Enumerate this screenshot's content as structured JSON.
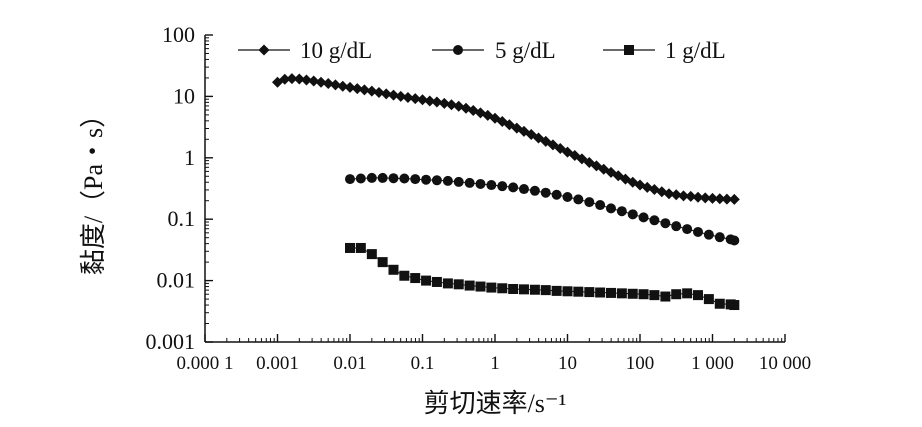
{
  "chart_data": {
    "type": "scatter",
    "title": "",
    "xlabel": "剪切速率/s⁻¹",
    "ylabel": "黏度/（Pa・s）",
    "xscale": "log",
    "yscale": "log",
    "xlim": [
      0.0001,
      10000
    ],
    "ylim": [
      0.001,
      100
    ],
    "xtick_labels": [
      "0.000 1",
      "0.001",
      "0.01",
      "0.1",
      "1",
      "10",
      "100",
      "1 000",
      "10 000"
    ],
    "ytick_labels": [
      "0.001",
      "0.01",
      "0.1",
      "1",
      "10",
      "100"
    ],
    "legend_position": "top",
    "grid": false,
    "series": [
      {
        "name": "10 g/dL",
        "marker": "diamond",
        "points": [
          [
            0.001,
            17.0
          ],
          [
            0.00126,
            19.0
          ],
          [
            0.00158,
            19.5
          ],
          [
            0.002,
            19.2
          ],
          [
            0.00251,
            18.5
          ],
          [
            0.00316,
            17.8
          ],
          [
            0.00398,
            17.0
          ],
          [
            0.00501,
            16.2
          ],
          [
            0.0063,
            15.4
          ],
          [
            0.00794,
            14.6
          ],
          [
            0.01,
            14.0
          ],
          [
            0.0126,
            13.4
          ],
          [
            0.0158,
            12.8
          ],
          [
            0.02,
            12.2
          ],
          [
            0.0251,
            11.6
          ],
          [
            0.0316,
            11.0
          ],
          [
            0.0398,
            10.5
          ],
          [
            0.0501,
            10.0
          ],
          [
            0.063,
            9.6
          ],
          [
            0.0794,
            9.2
          ],
          [
            0.1,
            8.8
          ],
          [
            0.126,
            8.4
          ],
          [
            0.158,
            8.1
          ],
          [
            0.2,
            7.7
          ],
          [
            0.251,
            7.3
          ],
          [
            0.316,
            6.9
          ],
          [
            0.398,
            6.4
          ],
          [
            0.501,
            5.9
          ],
          [
            0.63,
            5.4
          ],
          [
            0.794,
            4.9
          ],
          [
            1.0,
            4.4
          ],
          [
            1.26,
            3.9
          ],
          [
            1.58,
            3.45
          ],
          [
            2.0,
            3.05
          ],
          [
            2.51,
            2.7
          ],
          [
            3.16,
            2.4
          ],
          [
            3.98,
            2.1
          ],
          [
            5.01,
            1.85
          ],
          [
            6.3,
            1.62
          ],
          [
            7.94,
            1.42
          ],
          [
            10.0,
            1.24
          ],
          [
            12.6,
            1.09
          ],
          [
            15.8,
            0.96
          ],
          [
            20.0,
            0.84
          ],
          [
            25.1,
            0.74
          ],
          [
            31.6,
            0.65
          ],
          [
            39.8,
            0.58
          ],
          [
            50.1,
            0.51
          ],
          [
            63.0,
            0.45
          ],
          [
            79.4,
            0.4
          ],
          [
            100.0,
            0.36
          ],
          [
            126.0,
            0.33
          ],
          [
            158.0,
            0.305
          ],
          [
            200.0,
            0.28
          ],
          [
            251.0,
            0.26
          ],
          [
            316.0,
            0.25
          ],
          [
            398.0,
            0.24
          ],
          [
            501.0,
            0.235
          ],
          [
            631.0,
            0.228
          ],
          [
            794.0,
            0.222
          ],
          [
            1000.0,
            0.218
          ],
          [
            1260.0,
            0.215
          ],
          [
            1580.0,
            0.212
          ],
          [
            2000.0,
            0.21
          ]
        ]
      },
      {
        "name": "5 g/dL",
        "marker": "circle",
        "points": [
          [
            0.01,
            0.45
          ],
          [
            0.0141,
            0.46
          ],
          [
            0.02,
            0.47
          ],
          [
            0.0282,
            0.47
          ],
          [
            0.0398,
            0.465
          ],
          [
            0.0562,
            0.46
          ],
          [
            0.0794,
            0.45
          ],
          [
            0.112,
            0.44
          ],
          [
            0.158,
            0.43
          ],
          [
            0.224,
            0.42
          ],
          [
            0.316,
            0.405
          ],
          [
            0.447,
            0.39
          ],
          [
            0.631,
            0.375
          ],
          [
            0.891,
            0.36
          ],
          [
            1.26,
            0.345
          ],
          [
            1.78,
            0.33
          ],
          [
            2.51,
            0.31
          ],
          [
            3.55,
            0.29
          ],
          [
            5.01,
            0.27
          ],
          [
            7.08,
            0.25
          ],
          [
            10.0,
            0.23
          ],
          [
            14.1,
            0.21
          ],
          [
            20.0,
            0.19
          ],
          [
            28.2,
            0.17
          ],
          [
            39.8,
            0.15
          ],
          [
            56.2,
            0.135
          ],
          [
            79.4,
            0.12
          ],
          [
            112.0,
            0.107
          ],
          [
            158.0,
            0.096
          ],
          [
            224.0,
            0.086
          ],
          [
            316.0,
            0.077
          ],
          [
            447.0,
            0.069
          ],
          [
            631.0,
            0.062
          ],
          [
            891.0,
            0.056
          ],
          [
            1260.0,
            0.051
          ],
          [
            1780.0,
            0.047
          ],
          [
            2000.0,
            0.045
          ]
        ]
      },
      {
        "name": "1 g/dL",
        "marker": "square",
        "points": [
          [
            0.01,
            0.034
          ],
          [
            0.0141,
            0.034
          ],
          [
            0.02,
            0.027
          ],
          [
            0.0282,
            0.02
          ],
          [
            0.0398,
            0.015
          ],
          [
            0.0562,
            0.012
          ],
          [
            0.0794,
            0.011
          ],
          [
            0.112,
            0.01
          ],
          [
            0.158,
            0.0095
          ],
          [
            0.224,
            0.009
          ],
          [
            0.316,
            0.0087
          ],
          [
            0.447,
            0.0083
          ],
          [
            0.631,
            0.008
          ],
          [
            0.891,
            0.0077
          ],
          [
            1.26,
            0.0075
          ],
          [
            1.78,
            0.0073
          ],
          [
            2.51,
            0.0072
          ],
          [
            3.55,
            0.0071
          ],
          [
            5.01,
            0.007
          ],
          [
            7.08,
            0.0068
          ],
          [
            10.0,
            0.0067
          ],
          [
            14.1,
            0.0066
          ],
          [
            20.0,
            0.0065
          ],
          [
            28.2,
            0.0064
          ],
          [
            39.8,
            0.0063
          ],
          [
            56.2,
            0.0062
          ],
          [
            79.4,
            0.0061
          ],
          [
            112.0,
            0.006
          ],
          [
            158.0,
            0.0058
          ],
          [
            224.0,
            0.0055
          ],
          [
            316.0,
            0.006
          ],
          [
            447.0,
            0.0062
          ],
          [
            631.0,
            0.0058
          ],
          [
            891.0,
            0.005
          ],
          [
            1260.0,
            0.0042
          ],
          [
            1780.0,
            0.0041
          ],
          [
            2000.0,
            0.004
          ]
        ]
      }
    ]
  }
}
